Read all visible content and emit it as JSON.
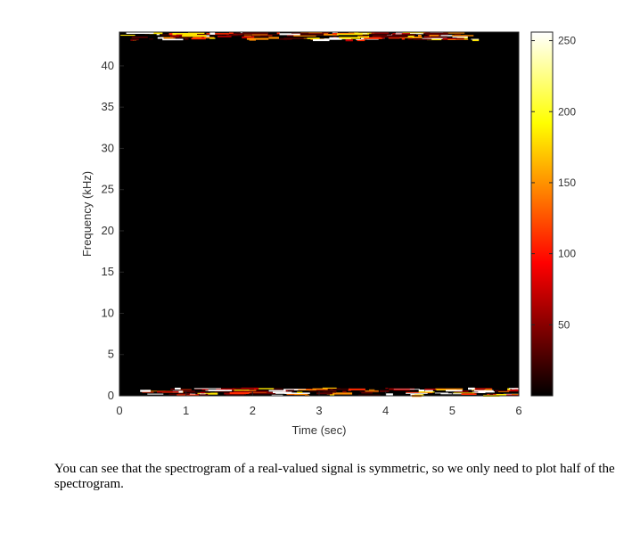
{
  "chart_data": {
    "type": "heatmap",
    "title": "",
    "xlabel": "Time (sec)",
    "ylabel": "Frequency (kHz)",
    "xlim": [
      0,
      6
    ],
    "ylim": [
      0,
      44.1
    ],
    "x_ticks": [
      0,
      1,
      2,
      3,
      4,
      5,
      6
    ],
    "y_ticks": [
      0,
      5,
      10,
      15,
      20,
      25,
      30,
      35,
      40
    ],
    "colorbar": {
      "colormap": "hot",
      "range": [
        0,
        256
      ],
      "ticks": [
        50,
        100,
        150,
        200,
        250
      ]
    },
    "background_value": 0,
    "bright_bands": [
      {
        "freq_khz": [
          0,
          1.0
        ],
        "time_sec": [
          0.3,
          6.0
        ],
        "peak_value": 255
      },
      {
        "freq_khz": [
          43.1,
          44.1
        ],
        "time_sec": [
          0.0,
          5.4
        ],
        "peak_value": 255
      }
    ]
  },
  "caption": "You can see that the spectrogram of a real-valued signal is symmetric, so we only need to plot half of the spectrogram."
}
